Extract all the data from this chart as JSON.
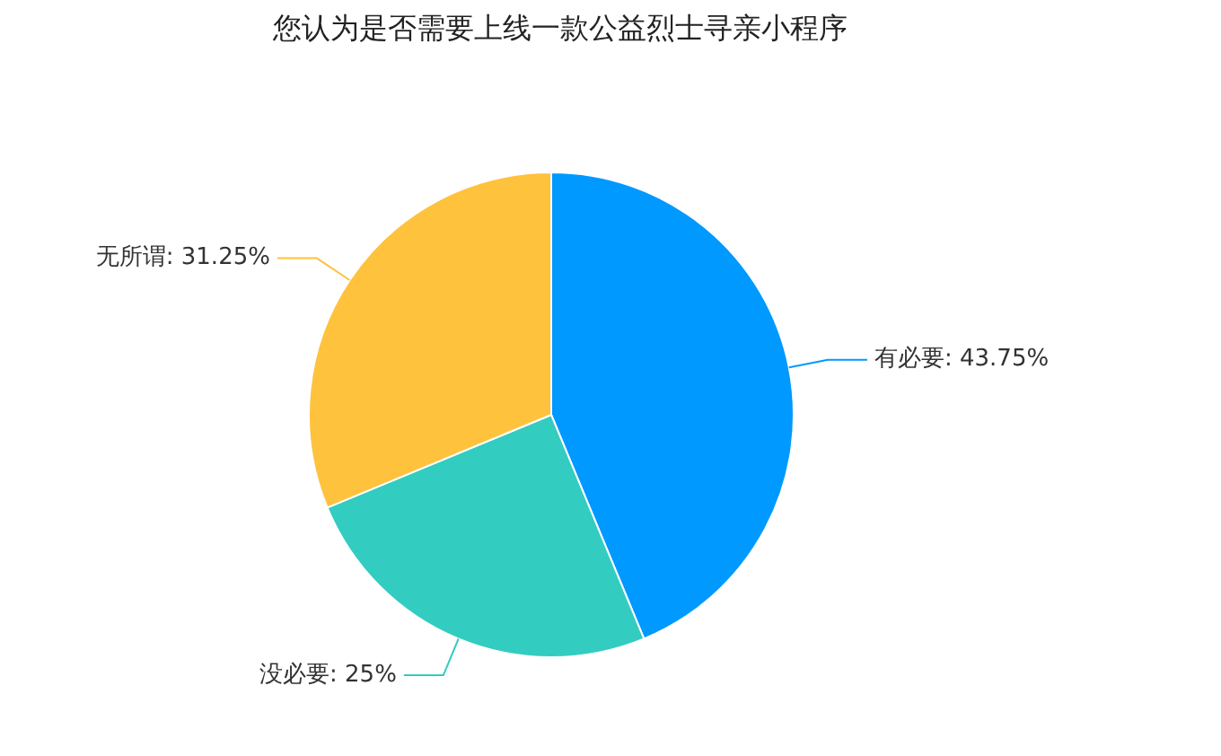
{
  "chart_data": {
    "type": "pie",
    "title": "您认为是否需要上线一款公益烈士寻亲小程序",
    "categories": [
      "有必要",
      "没必要",
      "无所谓"
    ],
    "values": [
      43.75,
      25,
      31.25
    ],
    "colors": [
      "#0099ff",
      "#33ccc0",
      "#ffc23d"
    ],
    "value_labels": [
      ": 43.75%",
      ": 25%",
      ": 31.25%"
    ],
    "legend": false
  }
}
